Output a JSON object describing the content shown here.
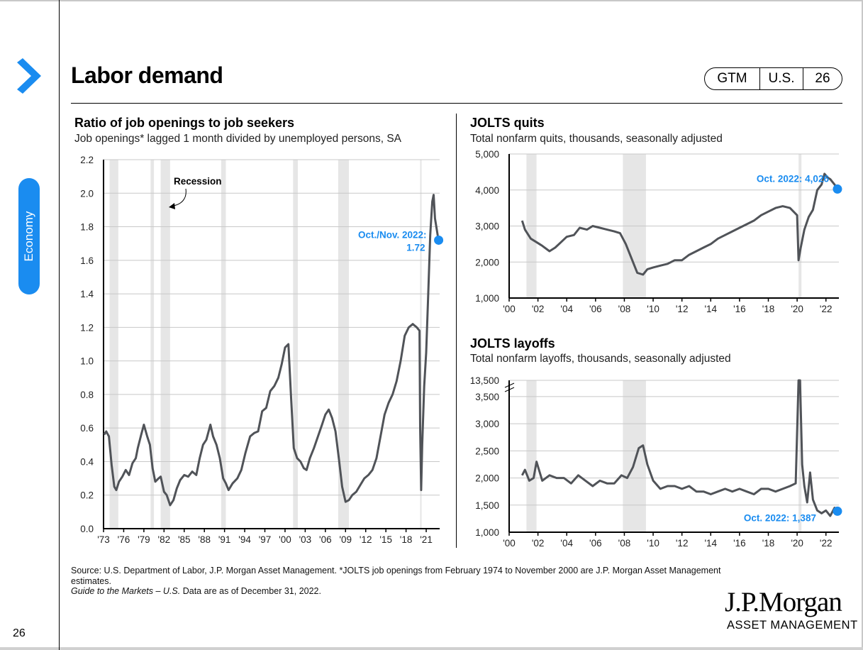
{
  "page": {
    "title": "Labor demand",
    "section": "Economy",
    "page_number": "26",
    "badge": [
      "GTM",
      "U.S.",
      "26"
    ],
    "accent_color": "#1a8cf0",
    "line_color": "#505358",
    "recession_color": "#e6e6e6",
    "source_line1": "Source: U.S. Department of Labor, J.P. Morgan Asset Management. *JOLTS job openings from February 1974 to November 2000 are J.P. Morgan Asset Management estimates.",
    "source_italic": "Guide to the Markets – U.S.",
    "source_line3": " Data are as of December 31, 2022.",
    "logo": "J.P.Morgan",
    "logo_sub": "ASSET MANAGEMENT"
  },
  "chart_data": [
    {
      "id": "ratio",
      "type": "line",
      "title": "Ratio of job openings to job seekers",
      "subtitle": "Job openings* lagged 1 month divided by unemployed persons, SA",
      "xlabel": "",
      "ylabel": "",
      "xlim": [
        1973,
        2023
      ],
      "ylim": [
        0,
        2.2
      ],
      "y_ticks": [
        0.0,
        0.2,
        0.4,
        0.6,
        0.8,
        1.0,
        1.2,
        1.4,
        1.6,
        1.8,
        2.0,
        2.2
      ],
      "y_tick_labels": [
        "0.0",
        "0.2",
        "0.4",
        "0.6",
        "0.8",
        "1.0",
        "1.2",
        "1.4",
        "1.6",
        "1.8",
        "2.0",
        "2.2"
      ],
      "x_ticks": [
        1973,
        1976,
        1979,
        1982,
        1985,
        1988,
        1991,
        1994,
        1997,
        2000,
        2003,
        2006,
        2009,
        2012,
        2015,
        2018,
        2021
      ],
      "x_tick_labels": [
        "'73",
        "'76",
        "'79",
        "'82",
        "'85",
        "'88",
        "'91",
        "'94",
        "'97",
        "'00",
        "'03",
        "'06",
        "'09",
        "'12",
        "'15",
        "'18",
        "'21"
      ],
      "grid": true,
      "recessions": [
        [
          1973.9,
          1975.2
        ],
        [
          1980.0,
          1980.5
        ],
        [
          1981.5,
          1982.9
        ],
        [
          1990.5,
          1991.2
        ],
        [
          2001.2,
          2001.9
        ],
        [
          2007.9,
          2009.5
        ],
        [
          2020.1,
          2020.3
        ]
      ],
      "recession_label": "Recession",
      "annotation": {
        "text_line1": "Oct./Nov. 2022:",
        "text_line2": "1.72",
        "x": 2022.85,
        "y": 1.72
      },
      "series": [
        {
          "name": "Ratio",
          "x": [
            1973.1,
            1973.4,
            1973.8,
            1974.2,
            1974.6,
            1974.9,
            1975.3,
            1975.8,
            1976.3,
            1976.8,
            1977.3,
            1977.8,
            1978.1,
            1978.6,
            1979.0,
            1979.5,
            1979.9,
            1980.3,
            1980.7,
            1981.2,
            1981.5,
            1982.0,
            1982.4,
            1982.9,
            1983.4,
            1983.9,
            1984.4,
            1985.0,
            1985.6,
            1986.2,
            1986.8,
            1987.3,
            1987.8,
            1988.3,
            1988.9,
            1989.3,
            1989.8,
            1990.3,
            1990.8,
            1991.2,
            1991.6,
            1992.2,
            1992.9,
            1993.5,
            1994.1,
            1994.8,
            1995.4,
            1996.0,
            1996.6,
            1997.2,
            1997.8,
            1998.4,
            1999.0,
            1999.5,
            2000.0,
            2000.5,
            2000.9,
            2001.3,
            2001.8,
            2002.3,
            2002.8,
            2003.2,
            2003.7,
            2004.3,
            2004.9,
            2005.5,
            2006.0,
            2006.5,
            2007.0,
            2007.5,
            2008.0,
            2008.5,
            2009.0,
            2009.5,
            2010.0,
            2010.6,
            2011.2,
            2011.8,
            2012.4,
            2013.0,
            2013.6,
            2014.2,
            2014.8,
            2015.4,
            2016.0,
            2016.6,
            2017.2,
            2017.8,
            2018.4,
            2019.0,
            2019.6,
            2020.0,
            2020.1,
            2020.25,
            2020.4,
            2020.7,
            2021.0,
            2021.3,
            2021.6,
            2021.9,
            2022.1,
            2022.3,
            2022.5,
            2022.7,
            2022.85
          ],
          "values": [
            0.56,
            0.58,
            0.55,
            0.38,
            0.25,
            0.23,
            0.28,
            0.31,
            0.35,
            0.32,
            0.39,
            0.42,
            0.48,
            0.56,
            0.62,
            0.55,
            0.5,
            0.36,
            0.28,
            0.3,
            0.31,
            0.22,
            0.2,
            0.14,
            0.17,
            0.24,
            0.29,
            0.32,
            0.31,
            0.34,
            0.32,
            0.42,
            0.5,
            0.53,
            0.62,
            0.55,
            0.5,
            0.42,
            0.3,
            0.27,
            0.23,
            0.27,
            0.3,
            0.35,
            0.45,
            0.55,
            0.57,
            0.58,
            0.7,
            0.72,
            0.82,
            0.85,
            0.9,
            0.98,
            1.08,
            1.1,
            0.78,
            0.48,
            0.42,
            0.4,
            0.36,
            0.35,
            0.42,
            0.48,
            0.55,
            0.62,
            0.68,
            0.71,
            0.66,
            0.58,
            0.42,
            0.25,
            0.16,
            0.17,
            0.2,
            0.22,
            0.26,
            0.3,
            0.32,
            0.35,
            0.42,
            0.55,
            0.68,
            0.75,
            0.8,
            0.88,
            1.0,
            1.15,
            1.2,
            1.22,
            1.2,
            1.18,
            0.6,
            0.23,
            0.5,
            0.85,
            1.05,
            1.4,
            1.75,
            1.95,
            1.99,
            1.85,
            1.8,
            1.75,
            1.72
          ]
        }
      ]
    },
    {
      "id": "quits",
      "type": "line",
      "title": "JOLTS quits",
      "subtitle": "Total nonfarm quits, thousands, seasonally adjusted",
      "xlim": [
        2000,
        2022.9
      ],
      "ylim": [
        1000,
        5000
      ],
      "y_ticks": [
        1000,
        2000,
        3000,
        4000,
        5000
      ],
      "y_tick_labels": [
        "1,000",
        "2,000",
        "3,000",
        "4,000",
        "5,000"
      ],
      "x_ticks": [
        2000,
        2002,
        2004,
        2006,
        2008,
        2010,
        2012,
        2014,
        2016,
        2018,
        2020,
        2022
      ],
      "x_tick_labels": [
        "'00",
        "'02",
        "'04",
        "'06",
        "'08",
        "'10",
        "'12",
        "'14",
        "'16",
        "'18",
        "'20",
        "'22"
      ],
      "grid": true,
      "recessions": [
        [
          2001.2,
          2001.9
        ],
        [
          2007.9,
          2009.5
        ],
        [
          2020.1,
          2020.3
        ]
      ],
      "annotation": {
        "text": "Oct. 2022: 4,026",
        "x": 2022.8,
        "y": 4026
      },
      "series": [
        {
          "name": "Quits",
          "x": [
            2000.9,
            2001.1,
            2001.5,
            2001.9,
            2002.3,
            2002.8,
            2003.2,
            2003.6,
            2004.0,
            2004.5,
            2004.9,
            2005.4,
            2005.8,
            2006.3,
            2006.8,
            2007.3,
            2007.7,
            2008.1,
            2008.5,
            2008.9,
            2009.3,
            2009.6,
            2010.0,
            2010.5,
            2011.0,
            2011.5,
            2012.0,
            2012.5,
            2013.0,
            2013.5,
            2014.0,
            2014.5,
            2015.0,
            2015.5,
            2016.0,
            2016.5,
            2017.0,
            2017.5,
            2018.0,
            2018.5,
            2019.0,
            2019.5,
            2020.0,
            2020.1,
            2020.25,
            2020.5,
            2020.8,
            2021.1,
            2021.4,
            2021.7,
            2021.9,
            2022.1,
            2022.3,
            2022.6,
            2022.8
          ],
          "values": [
            3150,
            2900,
            2650,
            2550,
            2450,
            2300,
            2400,
            2550,
            2700,
            2750,
            2950,
            2900,
            3000,
            2950,
            2900,
            2850,
            2800,
            2500,
            2100,
            1700,
            1650,
            1800,
            1850,
            1900,
            1950,
            2050,
            2050,
            2200,
            2300,
            2400,
            2500,
            2650,
            2750,
            2850,
            2950,
            3050,
            3150,
            3300,
            3400,
            3500,
            3550,
            3500,
            3300,
            2050,
            2400,
            2900,
            3250,
            3450,
            4000,
            4150,
            4450,
            4350,
            4300,
            4150,
            4026
          ]
        }
      ]
    },
    {
      "id": "layoffs",
      "type": "line",
      "title": "JOLTS layoffs",
      "subtitle": "Total nonfarm layoffs, thousands, seasonally adjusted",
      "xlim": [
        2000,
        2022.9
      ],
      "ylim": [
        1000,
        3800
      ],
      "axis_break": "3,800 to 13,500",
      "y_ticks": [
        1000,
        1500,
        2000,
        2500,
        3000,
        3500,
        3800
      ],
      "y_tick_labels": [
        "1,000",
        "1,500",
        "2,000",
        "2,500",
        "3,000",
        "3,500",
        "13,500"
      ],
      "x_ticks": [
        2000,
        2002,
        2004,
        2006,
        2008,
        2010,
        2012,
        2014,
        2016,
        2018,
        2020,
        2022
      ],
      "x_tick_labels": [
        "'00",
        "'02",
        "'04",
        "'06",
        "'08",
        "'10",
        "'12",
        "'14",
        "'16",
        "'18",
        "'20",
        "'22"
      ],
      "grid": true,
      "recessions": [
        [
          2001.2,
          2001.9
        ],
        [
          2007.9,
          2009.5
        ],
        [
          2020.1,
          2020.3
        ]
      ],
      "annotation": {
        "text": "Oct. 2022: 1,387",
        "x": 2022.8,
        "y": 1387
      },
      "series": [
        {
          "name": "Layoffs",
          "x": [
            2000.9,
            2001.1,
            2001.4,
            2001.7,
            2001.9,
            2002.3,
            2002.8,
            2003.3,
            2003.8,
            2004.3,
            2004.8,
            2005.3,
            2005.8,
            2006.3,
            2006.8,
            2007.3,
            2007.8,
            2008.2,
            2008.6,
            2009.0,
            2009.3,
            2009.6,
            2010.0,
            2010.5,
            2011.0,
            2011.5,
            2012.0,
            2012.5,
            2013.0,
            2013.5,
            2014.0,
            2014.5,
            2015.0,
            2015.5,
            2016.0,
            2016.5,
            2017.0,
            2017.5,
            2018.0,
            2018.5,
            2019.0,
            2019.5,
            2019.9,
            2020.1,
            2020.2,
            2020.35,
            2020.5,
            2020.7,
            2020.9,
            2021.1,
            2021.4,
            2021.7,
            2022.0,
            2022.3,
            2022.6,
            2022.8
          ],
          "values": [
            2050,
            2150,
            1950,
            2000,
            2300,
            1950,
            2050,
            2000,
            2000,
            1900,
            2050,
            1950,
            1850,
            1950,
            1900,
            1900,
            2050,
            2000,
            2200,
            2550,
            2600,
            2250,
            1950,
            1800,
            1850,
            1850,
            1800,
            1850,
            1750,
            1750,
            1700,
            1750,
            1800,
            1750,
            1800,
            1750,
            1700,
            1800,
            1800,
            1750,
            1800,
            1850,
            1900,
            3800,
            3800,
            2250,
            1850,
            1550,
            2100,
            1600,
            1400,
            1350,
            1400,
            1300,
            1450,
            1387
          ]
        }
      ]
    }
  ]
}
